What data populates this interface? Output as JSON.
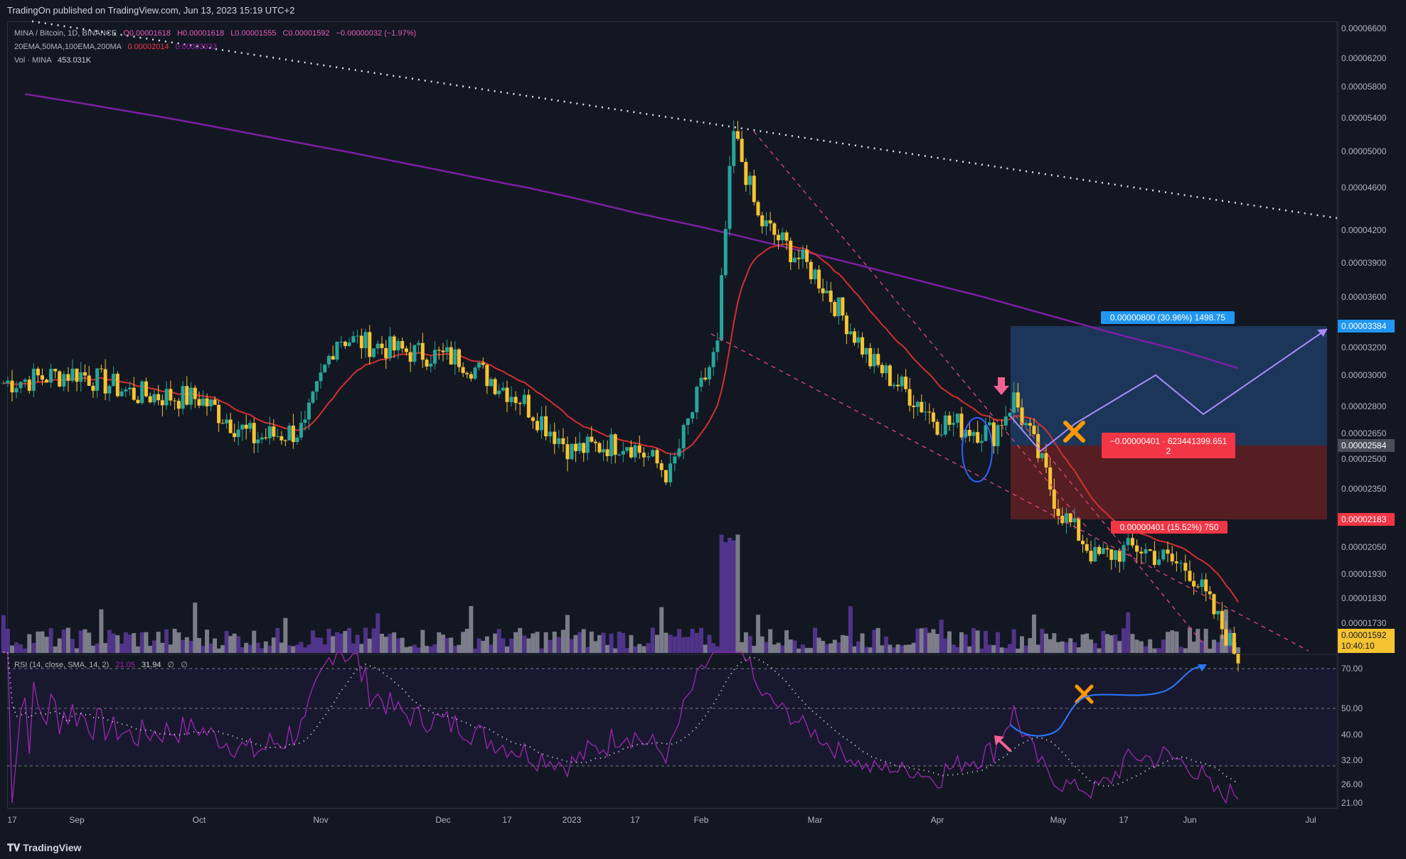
{
  "header": {
    "publisher_text": "TradingOn published on TradingView.com, Jun 13, 2023 15:19 UTC+2"
  },
  "legend": {
    "symbol": "MINA / Bitcoin, 1D, BINANCE",
    "open": "O0.00001618",
    "high": "H0.00001618",
    "low": "L0.00001555",
    "close": "C0.00001592",
    "change": "−0.00000032 (−1.97%)",
    "ema_label": "20EMA,50MA,100EMA,200MA",
    "ema_val1": "0.00002014",
    "ema_val2": "0.00003033",
    "vol_label": "Vol · MINA",
    "vol_val": "453.031K"
  },
  "rsi_legend": {
    "label": "RSI (14, close, SMA, 14, 2)",
    "v1": "21.05",
    "v2": "31.94",
    "v3": "∅",
    "v4": "∅"
  },
  "price_axis": {
    "ticks": [
      "0.00006600",
      "0.00006200",
      "0.00005800",
      "0.00005400",
      "0.00005000",
      "0.00004600",
      "0.00004200",
      "0.00003900",
      "0.00003600",
      "0.00003200",
      "0.00003000",
      "0.00002800",
      "0.00002650",
      "0.00002500",
      "0.00002350",
      "0.00002050",
      "0.00001930",
      "0.00001830",
      "0.00001730"
    ],
    "tags": {
      "target_price": "0.00003384",
      "entry_price": "0.00002584",
      "stop_price": "0.00002183",
      "last_price": "0.00001592",
      "countdown": "10:40:10"
    }
  },
  "rsi_axis": {
    "ticks": [
      "70.00",
      "50.00",
      "40.00",
      "32.00",
      "26.00",
      "21.00"
    ]
  },
  "time_axis": {
    "ticks": [
      "17",
      "Sep",
      "Oct",
      "Nov",
      "Dec",
      "17",
      "2023",
      "17",
      "Feb",
      "Mar",
      "Apr",
      "May",
      "17",
      "Jun",
      "Jul"
    ]
  },
  "position_tool": {
    "target_label": "0.00000800 (30.96%) 1498.75",
    "mid_label_line1": "−0.00000401 · 623441399.651",
    "mid_label_line2": "2",
    "stop_label": "0.00000401 (15.52%) 750"
  },
  "footer": {
    "brand": "TradingView"
  },
  "colors": {
    "background": "#131722",
    "candle_up": "#26a69a",
    "candle_down": "#f7c331",
    "ema20": "#d32f2f",
    "ma200": "#7b1fa2",
    "target_zone": "#1e3a5f",
    "stop_zone": "#5c1f24",
    "rsi_line": "#9c27b0",
    "accent_orange": "#ff9800",
    "accent_pink": "#f06292",
    "volume_up": "#5b3a9b",
    "volume_down": "#8e8e9a"
  },
  "chart_data": [
    {
      "type": "candlestick",
      "title": "MINA / Bitcoin, 1D, BINANCE",
      "x_range": [
        "2022-08-10",
        "2023-07-01"
      ],
      "y_range": [
        1.55e-05,
        6.7e-06
      ],
      "y_scale": "log",
      "approx_closes": [
        {
          "date": "2022-08-15",
          "close": 2.95e-05
        },
        {
          "date": "2022-09-01",
          "close": 3.02e-05
        },
        {
          "date": "2022-09-15",
          "close": 2.88e-05
        },
        {
          "date": "2022-10-01",
          "close": 2.85e-05
        },
        {
          "date": "2022-10-15",
          "close": 2.62e-05
        },
        {
          "date": "2022-10-28",
          "close": 2.67e-05
        },
        {
          "date": "2022-11-05",
          "close": 3.28e-05
        },
        {
          "date": "2022-11-20",
          "close": 3.18e-05
        },
        {
          "date": "2022-12-05",
          "close": 3.12e-05
        },
        {
          "date": "2022-12-20",
          "close": 2.85e-05
        },
        {
          "date": "2023-01-01",
          "close": 2.55e-05
        },
        {
          "date": "2023-01-15",
          "close": 2.6e-05
        },
        {
          "date": "2023-01-25",
          "close": 2.42e-05
        },
        {
          "date": "2023-02-05",
          "close": 3.2e-05
        },
        {
          "date": "2023-02-09",
          "close": 5.2e-05
        },
        {
          "date": "2023-02-15",
          "close": 4.3e-05
        },
        {
          "date": "2023-03-01",
          "close": 3.8e-05
        },
        {
          "date": "2023-03-15",
          "close": 3.1e-05
        },
        {
          "date": "2023-04-01",
          "close": 2.72e-05
        },
        {
          "date": "2023-04-15",
          "close": 2.65e-05
        },
        {
          "date": "2023-04-20",
          "close": 2.85e-05
        },
        {
          "date": "2023-05-01",
          "close": 2.25e-05
        },
        {
          "date": "2023-05-10",
          "close": 2e-05
        },
        {
          "date": "2023-05-20",
          "close": 2.05e-05
        },
        {
          "date": "2023-06-01",
          "close": 1.95e-05
        },
        {
          "date": "2023-06-13",
          "close": 1.592e-05
        }
      ],
      "series": [
        {
          "name": "20EMA",
          "color": "#d32f2f",
          "last_value": 2.014e-05
        },
        {
          "name": "200MA",
          "color": "#7b1fa2",
          "last_value": 3.033e-05
        }
      ]
    },
    {
      "type": "line",
      "title": "RSI (14, close, SMA, 14, 2)",
      "y_range": [
        21,
        75
      ],
      "levels": [
        70,
        50,
        30
      ],
      "series": [
        {
          "name": "RSI",
          "last_value": 21.05
        },
        {
          "name": "SMA",
          "last_value": 31.94
        }
      ]
    }
  ]
}
